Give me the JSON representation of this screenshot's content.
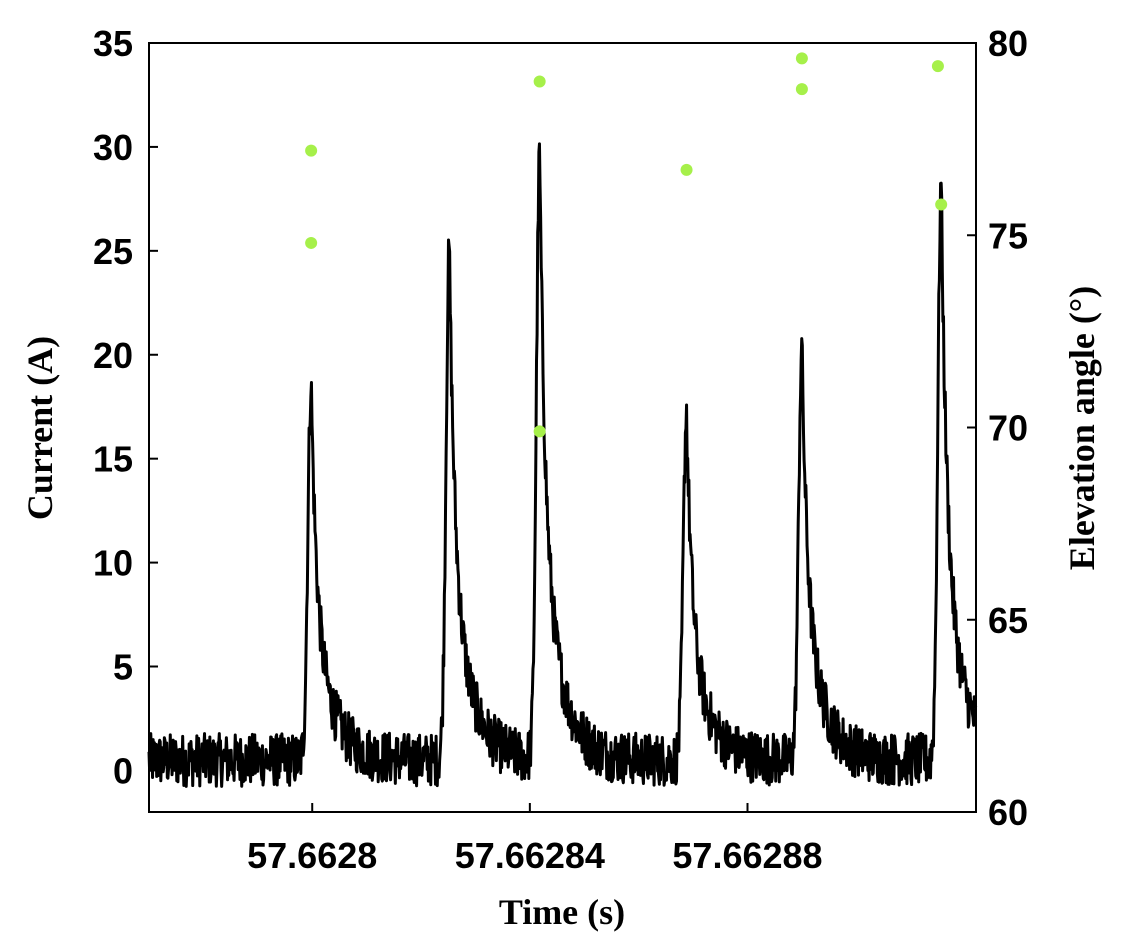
{
  "chart_data": {
    "type": "line",
    "title": "",
    "xlabel": "Time (s)",
    "ylabel": "Current (A)",
    "y2label": "Elevation angle (°)",
    "xlim": [
      57.66277,
      57.662922
    ],
    "ylim": [
      -2,
      35
    ],
    "y2lim": [
      60,
      80
    ],
    "x_ticks": [
      57.6628,
      57.66284,
      57.66288
    ],
    "x_tick_labels": [
      "57.6628",
      "57.66284",
      "57.66288"
    ],
    "y_ticks": [
      0,
      5,
      10,
      15,
      20,
      25,
      30,
      35
    ],
    "y_tick_labels": [
      "0",
      "5",
      "10",
      "15",
      "20",
      "25",
      "30",
      "35"
    ],
    "y2_ticks": [
      60,
      65,
      70,
      75,
      80
    ],
    "y2_tick_labels": [
      "60",
      "65",
      "70",
      "75",
      "80"
    ],
    "grid": false,
    "colors": {
      "current": "#000000",
      "elevation": "#a6f04a"
    },
    "series": [
      {
        "axis": "left",
        "style": "line",
        "peaks": [
          {
            "x": 57.6627998,
            "y": 18.2
          },
          {
            "x": 57.6628252,
            "y": 24.6
          },
          {
            "x": 57.6628418,
            "y": 29.0
          },
          {
            "x": 57.6628688,
            "y": 16.8
          },
          {
            "x": 57.66289,
            "y": 19.9
          },
          {
            "x": 57.6629156,
            "y": 27.8
          }
        ],
        "baseline": 0.5,
        "noise": 0.8
      },
      {
        "axis": "right",
        "style": "scatter",
        "points": [
          {
            "x": 57.6627998,
            "y": 77.2
          },
          {
            "x": 57.6627998,
            "y": 74.8
          },
          {
            "x": 57.6628418,
            "y": 79.0
          },
          {
            "x": 57.6628418,
            "y": 69.9
          },
          {
            "x": 57.6628688,
            "y": 76.7
          },
          {
            "x": 57.66289,
            "y": 79.6
          },
          {
            "x": 57.66289,
            "y": 78.8
          },
          {
            "x": 57.662915,
            "y": 79.4
          },
          {
            "x": 57.6629156,
            "y": 75.8
          }
        ]
      }
    ]
  }
}
